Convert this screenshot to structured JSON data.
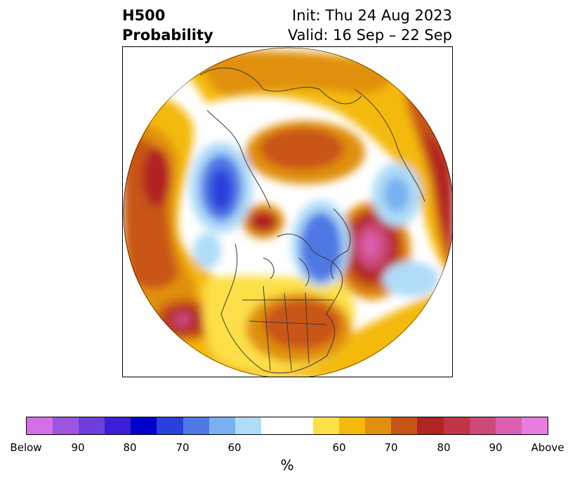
{
  "title": {
    "left_line1": "H500",
    "left_line2": "Probability",
    "right_line1": "Init: Thu 24 Aug 2023",
    "right_line2": "Valid: 16 Sep – 22 Sep"
  },
  "colorbar": {
    "colors": [
      "#d46fe8",
      "#9b55e0",
      "#6f3fdd",
      "#3a1fd6",
      "#0000cc",
      "#2a3fdc",
      "#4f78e5",
      "#78b0f0",
      "#aedcf8",
      "#ffffff",
      "#ffffff",
      "#fde047",
      "#f4b90b",
      "#e0900f",
      "#c95417",
      "#b12424",
      "#c23448",
      "#cc4979",
      "#dc5fb0",
      "#e67ddf"
    ],
    "tick_labels": [
      "Below",
      "90",
      "80",
      "70",
      "60",
      "60",
      "70",
      "80",
      "90",
      "Above"
    ],
    "unit": "%"
  },
  "legend_colors": {
    "below_strong": "#3a1fd6",
    "below_mid": "#4f78e5",
    "below_weak": "#aedcf8",
    "above_weak": "#fde047",
    "above_low": "#f4b90b",
    "above_mid": "#e0900f",
    "above_high": "#c95417",
    "above_strong": "#b12424",
    "above_very": "#cc4979"
  }
}
